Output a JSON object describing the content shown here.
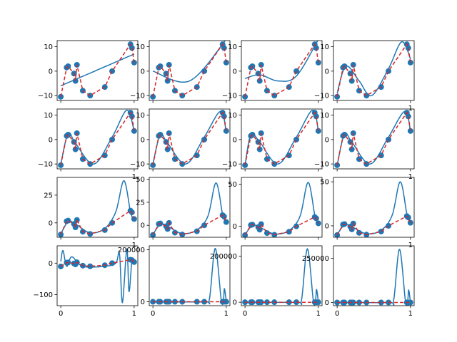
{
  "figure": {
    "colors": {
      "fit": "#1f77b4",
      "points": "#1f77b4",
      "trend": "#d62728",
      "axes": "#000000"
    },
    "grid": false,
    "legend": "none"
  },
  "points": {
    "x": [
      0.0,
      0.08,
      0.1,
      0.18,
      0.2,
      0.22,
      0.3,
      0.4,
      0.6,
      0.7,
      0.95,
      0.97,
      1.0
    ],
    "y": [
      -10.5,
      1.5,
      2.0,
      -1.0,
      -4.0,
      2.6,
      -8.0,
      -10.0,
      -6.5,
      0.0,
      11.0,
      9.5,
      3.5
    ]
  },
  "chart_data": [
    {
      "type": "line",
      "ylim": [
        -12,
        12.5
      ],
      "y_ticks": [
        "10",
        "0",
        "−10"
      ],
      "x_ticks": [],
      "fit": [
        [
          0,
          -6
        ],
        [
          1,
          7
        ]
      ]
    },
    {
      "type": "line",
      "ylim": [
        -12,
        12.5
      ],
      "y_ticks": [
        "10",
        "0",
        "−10"
      ],
      "x_ticks": [],
      "fit": [
        [
          0,
          0
        ],
        [
          0.5,
          -4
        ],
        [
          1,
          13
        ]
      ]
    },
    {
      "type": "line",
      "ylim": [
        -12,
        12.5
      ],
      "y_ticks": [
        "10",
        "0",
        "−10"
      ],
      "x_ticks": [],
      "fit": [
        [
          0,
          -3
        ],
        [
          0.2,
          -1.5
        ],
        [
          0.45,
          -4
        ],
        [
          0.7,
          -2
        ],
        [
          1,
          13
        ]
      ]
    },
    {
      "type": "line",
      "ylim": [
        -12,
        12.5
      ],
      "y_ticks": [
        "10",
        "0",
        "−10"
      ],
      "x_ticks": [
        "1"
      ],
      "fit": [
        [
          0,
          -9
        ],
        [
          0.12,
          2
        ],
        [
          0.3,
          -4
        ],
        [
          0.47,
          -10
        ],
        [
          0.7,
          1
        ],
        [
          0.88,
          12
        ],
        [
          1,
          5
        ]
      ]
    },
    {
      "type": "line",
      "ylim": [
        -12,
        12.5
      ],
      "y_ticks": [
        "10",
        "0",
        "−10"
      ],
      "x_ticks": [
        "1"
      ],
      "fit": [
        [
          0,
          -10
        ],
        [
          0.1,
          2.5
        ],
        [
          0.2,
          -1.5
        ],
        [
          0.45,
          -10
        ],
        [
          0.7,
          1
        ],
        [
          0.9,
          12
        ],
        [
          1,
          3.5
        ]
      ]
    },
    {
      "type": "line",
      "ylim": [
        -12,
        12.5
      ],
      "y_ticks": [
        "10",
        "0",
        "−10"
      ],
      "x_ticks": [],
      "fit": [
        [
          0,
          -10
        ],
        [
          0.1,
          2
        ],
        [
          0.2,
          -1.5
        ],
        [
          0.45,
          -10
        ],
        [
          0.7,
          1
        ],
        [
          0.92,
          11.5
        ],
        [
          1,
          3
        ]
      ]
    },
    {
      "type": "line",
      "ylim": [
        -12,
        12.5
      ],
      "y_ticks": [
        "10",
        "0",
        "−10"
      ],
      "x_ticks": [],
      "fit": [
        [
          0,
          -10.5
        ],
        [
          0.08,
          2
        ],
        [
          0.2,
          -1
        ],
        [
          0.45,
          -10
        ],
        [
          0.7,
          1
        ],
        [
          0.92,
          12
        ],
        [
          1,
          3.5
        ]
      ]
    },
    {
      "type": "line",
      "ylim": [
        -12,
        12.5
      ],
      "y_ticks": [
        "10",
        "0",
        "−10"
      ],
      "x_ticks": [
        "1"
      ],
      "fit": [
        [
          0,
          -10.5
        ],
        [
          0.1,
          2.2
        ],
        [
          0.2,
          -1
        ],
        [
          0.45,
          -10
        ],
        [
          0.7,
          1
        ],
        [
          0.92,
          11.5
        ],
        [
          1,
          3.5
        ]
      ]
    },
    {
      "type": "line",
      "ylim": [
        -13,
        41
      ],
      "y_ticks": [
        "25",
        "0"
      ],
      "x_ticks": [
        "1"
      ],
      "fit": [
        [
          0,
          -10
        ],
        [
          0.1,
          1
        ],
        [
          0.2,
          -1
        ],
        [
          0.4,
          -9
        ],
        [
          0.6,
          -5
        ],
        [
          0.75,
          10
        ],
        [
          0.86,
          38
        ],
        [
          0.95,
          10
        ],
        [
          1,
          2
        ]
      ]
    },
    {
      "type": "line",
      "ylim": [
        -13,
        52
      ],
      "y_ticks": [
        "50",
        "25",
        "0"
      ],
      "x_ticks": [],
      "fit": [
        [
          0,
          -10
        ],
        [
          0.1,
          1
        ],
        [
          0.2,
          -1
        ],
        [
          0.4,
          -9
        ],
        [
          0.6,
          -5
        ],
        [
          0.75,
          10
        ],
        [
          0.86,
          46
        ],
        [
          0.95,
          12
        ],
        [
          1,
          2
        ]
      ]
    },
    {
      "type": "line",
      "ylim": [
        -13,
        58
      ],
      "y_ticks": [
        "50",
        "0"
      ],
      "x_ticks": [],
      "fit": [
        [
          0,
          -10
        ],
        [
          0.1,
          1
        ],
        [
          0.2,
          -1
        ],
        [
          0.4,
          -9
        ],
        [
          0.6,
          -5
        ],
        [
          0.75,
          12
        ],
        [
          0.86,
          52
        ],
        [
          0.95,
          14
        ],
        [
          1,
          2
        ]
      ]
    },
    {
      "type": "line",
      "ylim": [
        -13,
        55
      ],
      "y_ticks": [
        "50",
        "0"
      ],
      "x_ticks": [
        "1"
      ],
      "fit": [
        [
          0,
          -10
        ],
        [
          0.1,
          1
        ],
        [
          0.2,
          -1
        ],
        [
          0.4,
          -9
        ],
        [
          0.6,
          -5
        ],
        [
          0.75,
          12
        ],
        [
          0.86,
          50
        ],
        [
          0.95,
          14
        ],
        [
          1,
          2
        ]
      ]
    },
    {
      "type": "line",
      "ylim": [
        -135,
        55
      ],
      "y_ticks": [
        "0",
        "−100"
      ],
      "x_ticks": [
        "0",
        "1"
      ],
      "fit": [
        [
          0,
          5
        ],
        [
          0.03,
          40
        ],
        [
          0.08,
          -10
        ],
        [
          0.15,
          20
        ],
        [
          0.3,
          -10
        ],
        [
          0.6,
          -10
        ],
        [
          0.75,
          0
        ],
        [
          0.8,
          30
        ],
        [
          0.84,
          -125
        ],
        [
          0.9,
          45
        ],
        [
          0.93,
          -90
        ],
        [
          0.97,
          10
        ],
        [
          1,
          0
        ]
      ]
    },
    {
      "type": "line",
      "ylim": [
        -15000,
        215000
      ],
      "y_ticks": [
        "200000",
        "0"
      ],
      "x_ticks": [
        "0",
        "1"
      ],
      "fit": [
        [
          0,
          0
        ],
        [
          0.7,
          0
        ],
        [
          0.77,
          10000
        ],
        [
          0.85,
          205000
        ],
        [
          0.93,
          10000
        ],
        [
          0.96,
          0
        ],
        [
          0.975,
          50000
        ],
        [
          1,
          0
        ]
      ]
    },
    {
      "type": "line",
      "ylim": [
        -15000,
        245000
      ],
      "y_ticks": [
        "200000",
        "0"
      ],
      "x_ticks": [
        "0",
        "1"
      ],
      "fit": [
        [
          0,
          0
        ],
        [
          0.7,
          0
        ],
        [
          0.77,
          10000
        ],
        [
          0.85,
          232000
        ],
        [
          0.93,
          10000
        ],
        [
          0.96,
          0
        ],
        [
          0.975,
          55000
        ],
        [
          1,
          0
        ]
      ]
    },
    {
      "type": "line",
      "ylim": [
        -18000,
        320000
      ],
      "y_ticks": [
        "250000",
        "0"
      ],
      "x_ticks": [
        "0",
        "1"
      ],
      "fit": [
        [
          0,
          0
        ],
        [
          0.7,
          0
        ],
        [
          0.77,
          12000
        ],
        [
          0.85,
          300000
        ],
        [
          0.93,
          12000
        ],
        [
          0.96,
          0
        ],
        [
          0.975,
          70000
        ],
        [
          1,
          0
        ]
      ]
    }
  ]
}
